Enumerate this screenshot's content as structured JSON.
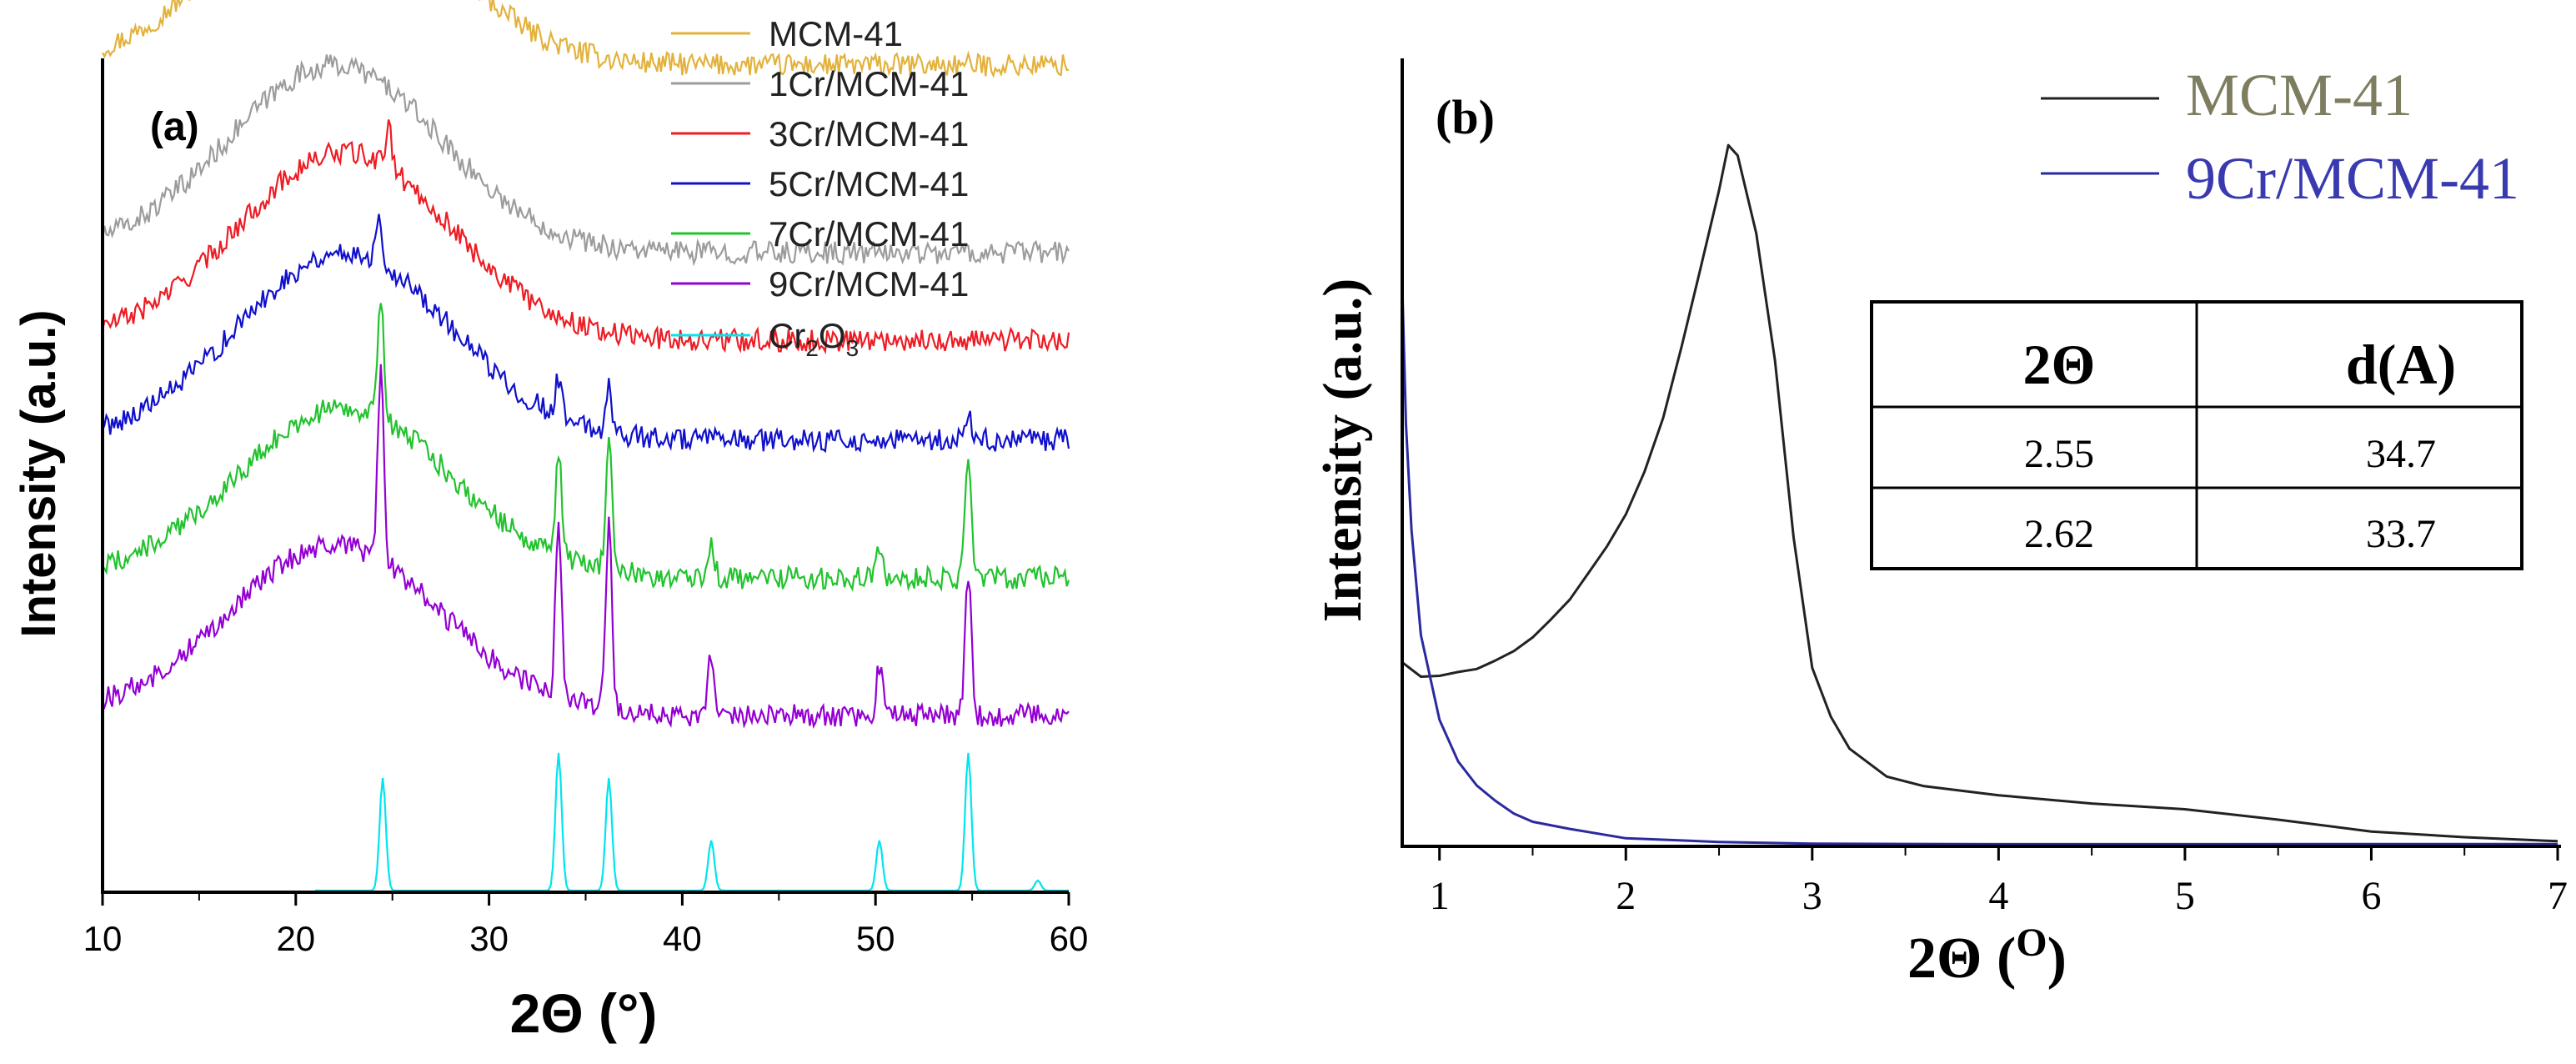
{
  "chart_data": [
    {
      "panel_label": "(a)",
      "type": "line",
      "title": "",
      "xlabel": "2Θ (°)",
      "ylabel": "Intensity (a.u.)",
      "xlim": [
        10,
        60
      ],
      "x_ticks": [
        10,
        20,
        30,
        40,
        50,
        60
      ],
      "y_ticks": [],
      "grid": false,
      "legend_position": "top-right",
      "series": [
        {
          "name": "MCM-41",
          "legend_main": "MCM-41",
          "color": "#e3b23c",
          "offset": 330,
          "hump": [
            22,
            5.5,
            75
          ],
          "peaks": []
        },
        {
          "name": "1Cr/MCM-41",
          "legend_main": "1Cr/MCM-41",
          "color": "#9c9c9c",
          "offset": 255,
          "hump": [
            22,
            5.5,
            75
          ],
          "peaks": []
        },
        {
          "name": "3Cr/MCM-41",
          "legend_main": "3Cr/MCM-41",
          "color": "#ee1c24",
          "offset": 220,
          "hump": [
            22.5,
            5.5,
            75
          ],
          "peaks": [
            [
              24.8,
              18
            ]
          ]
        },
        {
          "name": "5Cr/MCM-41",
          "legend_main": "5Cr/MCM-41",
          "color": "#1010cc",
          "offset": 180,
          "hump": [
            22.5,
            5.5,
            75
          ],
          "peaks": [
            [
              24.3,
              20
            ],
            [
              33.6,
              15
            ],
            [
              36.2,
              18
            ],
            [
              54.8,
              10
            ]
          ]
        },
        {
          "name": "7Cr/MCM-41",
          "legend_main": "7Cr/MCM-41",
          "color": "#22c32e",
          "offset": 125,
          "hump": [
            22.5,
            5.5,
            68
          ],
          "peaks": [
            [
              24.4,
              45
            ],
            [
              33.6,
              40
            ],
            [
              36.2,
              55
            ],
            [
              41.5,
              12
            ],
            [
              50.2,
              12
            ],
            [
              54.8,
              50
            ]
          ]
        },
        {
          "name": "9Cr/MCM-41",
          "legend_main": "9Cr/MCM-41",
          "color": "#9400d3",
          "offset": 70,
          "hump": [
            22,
            5.5,
            68
          ],
          "peaks": [
            [
              24.4,
              75
            ],
            [
              33.6,
              68
            ],
            [
              36.2,
              75
            ],
            [
              41.5,
              25
            ],
            [
              50.2,
              20
            ],
            [
              54.8,
              58
            ]
          ]
        },
        {
          "name": "Cr2O3",
          "legend_main": "Cr",
          "legend_sub1": "2",
          "legend_mid": "O",
          "legend_sub2": "3",
          "color": "#00e5ee",
          "offset": 0,
          "hump": [
            22,
            5.5,
            0
          ],
          "peaks": [
            [
              24.5,
              45
            ],
            [
              33.6,
              55
            ],
            [
              36.2,
              45
            ],
            [
              41.5,
              20
            ],
            [
              50.2,
              20
            ],
            [
              54.8,
              55
            ],
            [
              58.4,
              4
            ]
          ]
        }
      ]
    },
    {
      "panel_label": "(b)",
      "type": "line",
      "title": "",
      "xlabel": "2Θ (",
      "xlabel_sup": "O",
      "xlabel_end": ")",
      "ylabel": "Intensity (a.u.)",
      "xlim": [
        0.8,
        7
      ],
      "ylim": [
        0,
        100
      ],
      "x_ticks": [
        1,
        2,
        3,
        4,
        5,
        6,
        7
      ],
      "grid": false,
      "legend_position": "top-right",
      "series": [
        {
          "name": "MCM-41",
          "color": "#222222",
          "legend_text_color": "#7e7d60",
          "x": [
            0.8,
            0.9,
            1.0,
            1.1,
            1.2,
            1.3,
            1.4,
            1.5,
            1.6,
            1.7,
            1.8,
            1.9,
            2.0,
            2.1,
            2.2,
            2.3,
            2.4,
            2.5,
            2.55,
            2.6,
            2.7,
            2.8,
            2.9,
            3.0,
            3.1,
            3.2,
            3.4,
            3.6,
            4.0,
            4.5,
            5.0,
            5.5,
            6.0,
            6.5,
            7.0
          ],
          "y": [
            26,
            24,
            24,
            24.5,
            25,
            26,
            27.5,
            29.5,
            32,
            35,
            38.5,
            42.5,
            47,
            53,
            61,
            71,
            82,
            93,
            100,
            98,
            87,
            69,
            44,
            25,
            18,
            14,
            10,
            8.5,
            7,
            6,
            5,
            3.5,
            2,
            1,
            0.5
          ]
        },
        {
          "name": "9Cr/MCM-41",
          "color": "#2a2aa0",
          "legend_text_color": "#3a3ab0",
          "x": [
            0.8,
            0.82,
            0.85,
            0.9,
            1.0,
            1.1,
            1.2,
            1.3,
            1.4,
            1.5,
            1.7,
            2.0,
            2.5,
            3.0,
            4.0,
            7.0
          ],
          "y": [
            80,
            60,
            45,
            30,
            18,
            12,
            8.5,
            6,
            4.5,
            3.5,
            2,
            1,
            0.5,
            0.2,
            0.1,
            0.1
          ]
        }
      ],
      "table": {
        "headers": [
          "2Θ",
          "d(A)"
        ],
        "rows": [
          [
            "2.55",
            "34.7"
          ],
          [
            "2.62",
            "33.7"
          ]
        ]
      }
    }
  ]
}
